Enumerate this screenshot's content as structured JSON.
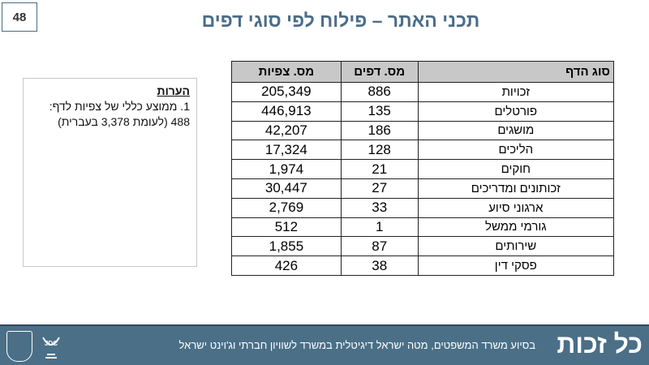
{
  "slide_number": "48",
  "title": "תכני האתר – פילוח לפי סוגי דפים",
  "notes": {
    "heading": "הערות",
    "line1": "1. ממוצע כללי של צפיות לדף:",
    "line2": "488 (לעומת 3,378 בעברית)"
  },
  "table": {
    "headers": [
      "סוג הדף",
      "מס. דפים",
      "מס. צפיות"
    ],
    "rows": [
      [
        "זכויות",
        "886",
        "205,349"
      ],
      [
        "פורטלים",
        "135",
        "446,913"
      ],
      [
        "מושגים",
        "186",
        "42,207"
      ],
      [
        "הליכים",
        "128",
        "17,324"
      ],
      [
        "חוקים",
        "21",
        "1,974"
      ],
      [
        "זכותונים ומדריכים",
        "27",
        "30,447"
      ],
      [
        "ארגוני סיוע",
        "33",
        "2,769"
      ],
      [
        "גורמי ממשל",
        "1",
        "512"
      ],
      [
        "שירותים",
        "87",
        "1,855"
      ],
      [
        "פסקי דין",
        "38",
        "426"
      ]
    ]
  },
  "footer": {
    "brand": "כל זכות",
    "text": "בסיוע משרד המשפטים, מטה ישראל דיגיטלית במשרד לשוויון חברתי וג'וינט ישראל",
    "jdc": "JDC",
    "bg": "#4a6f87"
  }
}
